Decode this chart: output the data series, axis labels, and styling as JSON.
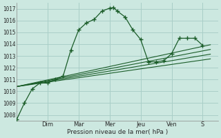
{
  "background_color": "#cce8e0",
  "plot_bg": "#cce8e0",
  "grid_color": "#aacfc8",
  "line_color": "#1a5c28",
  "title": "Pression niveau de la mer( hPa )",
  "ylim": [
    1007.5,
    1017.5
  ],
  "yticks": [
    1008,
    1009,
    1010,
    1011,
    1012,
    1013,
    1014,
    1015,
    1016,
    1017
  ],
  "day_labels": [
    "Dim",
    "Mar",
    "Mer",
    "Jeu",
    "Ven",
    "S"
  ],
  "day_positions": [
    2,
    4,
    6,
    8,
    10,
    12
  ],
  "xlim": [
    0,
    13
  ],
  "series1_x": [
    0,
    0.5,
    1.0,
    1.5,
    2.0,
    2.5,
    3.0,
    3.5,
    4.0,
    4.5,
    5.0,
    5.5,
    6.0,
    6.25,
    6.5,
    7.0,
    7.5,
    8.0,
    8.5,
    9.0,
    9.5,
    10.0,
    10.5,
    11.0,
    11.5,
    12.0
  ],
  "series1_y": [
    1007.6,
    1009.0,
    1010.2,
    1010.7,
    1010.7,
    1011.0,
    1011.3,
    1013.5,
    1015.2,
    1015.8,
    1016.1,
    1016.8,
    1017.05,
    1017.1,
    1016.8,
    1016.3,
    1015.2,
    1014.4,
    1012.5,
    1012.5,
    1012.6,
    1013.2,
    1014.5,
    1014.5,
    1014.5,
    1013.9
  ],
  "fan_lines": [
    {
      "x": [
        0,
        12.5
      ],
      "y": [
        1010.4,
        1013.95
      ]
    },
    {
      "x": [
        0,
        12.5
      ],
      "y": [
        1010.4,
        1013.55
      ]
    },
    {
      "x": [
        0,
        12.5
      ],
      "y": [
        1010.4,
        1013.15
      ]
    },
    {
      "x": [
        0,
        12.5
      ],
      "y": [
        1010.4,
        1012.75
      ]
    }
  ]
}
